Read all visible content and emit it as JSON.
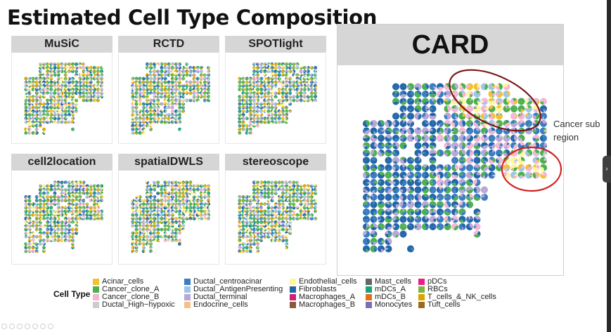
{
  "title": "Estimated Cell Type Composition",
  "panels": [
    {
      "label": "MuSiC"
    },
    {
      "label": "RCTD"
    },
    {
      "label": "SPOTlight"
    },
    {
      "label": "cell2location"
    },
    {
      "label": "spatialDWLS"
    },
    {
      "label": "stereoscope"
    }
  ],
  "card": {
    "label": "CARD"
  },
  "annotation": {
    "line1": "Cancer sub",
    "line2": "region"
  },
  "legend": {
    "title": "Cell Type",
    "columns": [
      [
        {
          "label": "Acinar_cells",
          "color": "#f2c12e"
        },
        {
          "label": "Cancer_clone_A",
          "color": "#4caf50"
        },
        {
          "label": "Cancer_clone_B",
          "color": "#f3b6d3"
        },
        {
          "label": "Ductal_High−hypoxic",
          "color": "#cccccc"
        }
      ],
      [
        {
          "label": "Ductal_centroacinar",
          "color": "#3a7dc0"
        },
        {
          "label": "Ductal_AntigenPresenting",
          "color": "#9ec5e8"
        },
        {
          "label": "Ductal_terminal",
          "color": "#b9a6d6"
        },
        {
          "label": "Endocrine_cells",
          "color": "#f7c08a"
        }
      ],
      [
        {
          "label": "Endothelial_cells",
          "color": "#fff59d"
        },
        {
          "label": "Fibroblasts",
          "color": "#2266aa"
        },
        {
          "label": "Macrophages_A",
          "color": "#cc2277"
        },
        {
          "label": "Macrophages_B",
          "color": "#8a5a3b"
        }
      ],
      [
        {
          "label": "Mast_cells",
          "color": "#666666"
        },
        {
          "label": "mDCs_A",
          "color": "#1aa37a"
        },
        {
          "label": "mDCs_B",
          "color": "#e0701e"
        },
        {
          "label": "Monocytes",
          "color": "#7a70b8"
        }
      ],
      [
        {
          "label": "pDCs",
          "color": "#e91e8c"
        },
        {
          "label": "RBCs",
          "color": "#7cb342"
        },
        {
          "label": "T_cells_&_NK_cells",
          "color": "#d9a300"
        },
        {
          "label": "Tuft_cells",
          "color": "#9c6b1e"
        }
      ]
    ]
  },
  "colors": {
    "header_bg": "#d6d6d6",
    "ellipse_dark": "#7a1515",
    "ellipse_red": "#d42020"
  }
}
